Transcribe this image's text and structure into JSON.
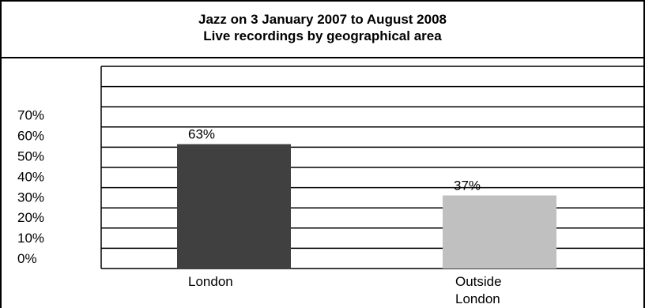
{
  "chart_data": {
    "type": "bar",
    "title": "Jazz on 3 January 2007 to August 2008",
    "subtitle": "Live recordings by geographical area",
    "categories": [
      "London",
      "Outside\nLondon"
    ],
    "values": [
      63,
      37
    ],
    "data_labels": [
      "63%",
      "37%"
    ],
    "y_ticks": [
      "0%",
      "10%",
      "20%",
      "30%",
      "40%",
      "50%",
      "60%",
      "70%"
    ],
    "bar_colors": [
      "#404040",
      "#c0c0c0"
    ],
    "grid": true,
    "legend": "none"
  }
}
